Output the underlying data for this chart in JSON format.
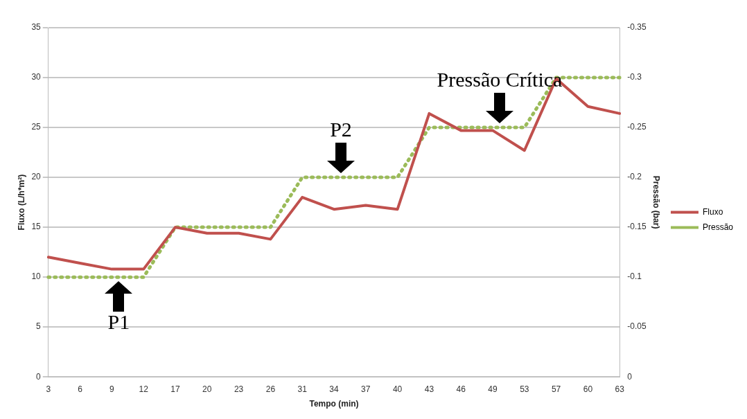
{
  "chart_data": {
    "type": "line",
    "xlabel": "Tempo (min)",
    "ylabel": "Fluxo (L/h*m²)",
    "y2label": "Pressão (bar)",
    "categories": [
      "3",
      "6",
      "9",
      "12",
      "17",
      "20",
      "23",
      "26",
      "31",
      "34",
      "37",
      "40",
      "43",
      "46",
      "49",
      "53",
      "57",
      "60",
      "63"
    ],
    "series": [
      {
        "name": "Fluxo",
        "color": "#c0504d",
        "line_style": "solid",
        "values": [
          12,
          11.4,
          10.8,
          10.8,
          15,
          14.4,
          14.4,
          13.8,
          18,
          16.8,
          17.2,
          16.8,
          26.4,
          24.7,
          24.7,
          22.7,
          29.9,
          27.1,
          26.4
        ]
      },
      {
        "name": "Pressão",
        "color": "#9bbb59",
        "line_style": "dotted",
        "axis": "y2",
        "values": [
          -0.1,
          -0.1,
          -0.1,
          -0.1,
          -0.15,
          -0.15,
          -0.15,
          -0.15,
          -0.2,
          -0.2,
          -0.2,
          -0.2,
          -0.25,
          -0.25,
          -0.25,
          -0.25,
          -0.3,
          -0.3,
          -0.3
        ]
      }
    ],
    "ylim": [
      0,
      35
    ],
    "yticks": [
      0,
      5,
      10,
      15,
      20,
      25,
      30,
      35
    ],
    "y2lim": [
      0,
      -0.35
    ],
    "y2ticks": [
      0,
      -0.05,
      -0.1,
      -0.15,
      -0.2,
      -0.25,
      -0.3,
      -0.35
    ],
    "annotations": [
      {
        "text": "P1",
        "x": "9",
        "y": 10
      },
      {
        "text": "P2",
        "x": "34",
        "y": 20
      },
      {
        "text": "Pressão Crítica",
        "x": "49",
        "y": 25
      }
    ],
    "grid": "y",
    "legend": "right",
    "marker": "none"
  }
}
